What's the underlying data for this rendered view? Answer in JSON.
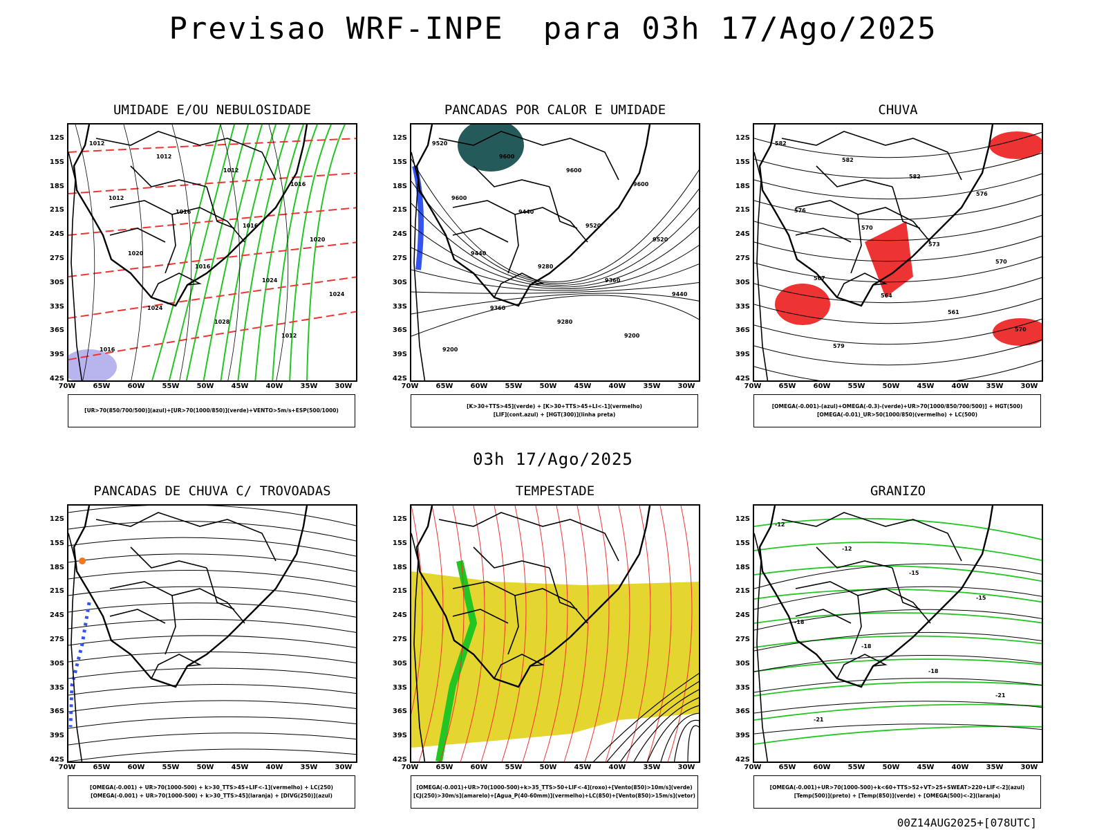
{
  "header": {
    "title": "Previsao WRF-INPE  para 03h 17/Ago/2025"
  },
  "mid_title": "03h 17/Ago/2025",
  "footer": "00Z14AUG2025+[078UTC]",
  "axes": {
    "lat_labels": [
      "12S",
      "15S",
      "18S",
      "21S",
      "24S",
      "27S",
      "30S",
      "33S",
      "36S",
      "39S",
      "42S"
    ],
    "lon_labels": [
      "70W",
      "65W",
      "60W",
      "55W",
      "50W",
      "45W",
      "40W",
      "35W",
      "30W"
    ]
  },
  "colors": {
    "green": "#22c522",
    "red": "#ee3333",
    "blue": "#3355ee",
    "yellow": "#e5d62f",
    "teal": "#255a5a",
    "lavender": "#b8b4ee",
    "orange": "#f07820"
  },
  "panels": [
    {
      "id": "umidade",
      "title": "UMIDADE E/OU NEBULOSIDADE",
      "legend": [
        "[UR>70(850/700/500)](azul)+[UR>70(1000/850)](verde)+VENTO>5m/s+ESP(500/1000)"
      ],
      "labels": [
        "1012",
        "1012",
        "1012",
        "1016",
        "1012",
        "1016",
        "1016",
        "1020",
        "1020",
        "1016",
        "1024",
        "1024",
        "1024",
        "1028",
        "1012",
        "1016"
      ]
    },
    {
      "id": "pancadas-calor",
      "title": "PANCADAS POR CALOR E UMIDADE",
      "legend": [
        "[K>30+TTS>45](verde) + [K>30+TTS>45+LI<-1](vermelho)",
        "[LIF](cont.azul) + [HGT(300)](linha preta)"
      ],
      "labels": [
        "9520",
        "9600",
        "9600",
        "9600",
        "9600",
        "9440",
        "9520",
        "9520",
        "9440",
        "9280",
        "9360",
        "9440",
        "9360",
        "9280",
        "9200",
        "9200"
      ]
    },
    {
      "id": "chuva",
      "title": "CHUVA",
      "legend": [
        "[OMEGA(-0.001)-(azul)+OMEGA(-0.3)-(verde)+UR>70(1000/850/700/500)] + HGT(500)",
        "[OMEGA(-0.01)_UR>50(1000/850)(vermelho) + LC(500)"
      ],
      "labels": [
        "582",
        "582",
        "582",
        "576",
        "576",
        "570",
        "573",
        "570",
        "567",
        "564",
        "561",
        "570",
        "579"
      ]
    },
    {
      "id": "pancadas-trovoadas",
      "title": "PANCADAS DE CHUVA C/ TROVOADAS",
      "legend": [
        "[OMEGA(-0.001) + UR>70(1000-500) + k>30_TTS>45+LIF<-1](vermelho) + LC(250)",
        "[OMEGA(-0.001) + UR>70(1000-500) + k>30_TTS>45](laranja) + [DIVG(250)](azul)"
      ],
      "labels": []
    },
    {
      "id": "tempestade",
      "title": "TEMPESTADE",
      "legend": [
        "[OMEGA(-0.001)+UR>70(1000-500)+k>35_TTS>50+LIF<-4](roxo)+[Vento(850)>10m/s](verde)",
        "[CJ(250)>30m/s](amarelo)+[Agua_P(40-60mm)](vermelho)+LC(850)+[Vento(850)>15m/s](vetor)"
      ],
      "labels": []
    },
    {
      "id": "granizo",
      "title": "GRANIZO",
      "legend": [
        "[OMEGA(-0.001)+UR>70(1000-500)+k<60+TTS>52+VT>25+SWEAT>220+LIF<-2](azul)",
        "[Temp(500)](preto) + [Temp(850)](verde) + [OMEGA(500)<-2](laranja)"
      ],
      "labels": [
        "-12",
        "-12",
        "-15",
        "-15",
        "-18",
        "-18",
        "-18",
        "-21",
        "-21"
      ]
    }
  ]
}
